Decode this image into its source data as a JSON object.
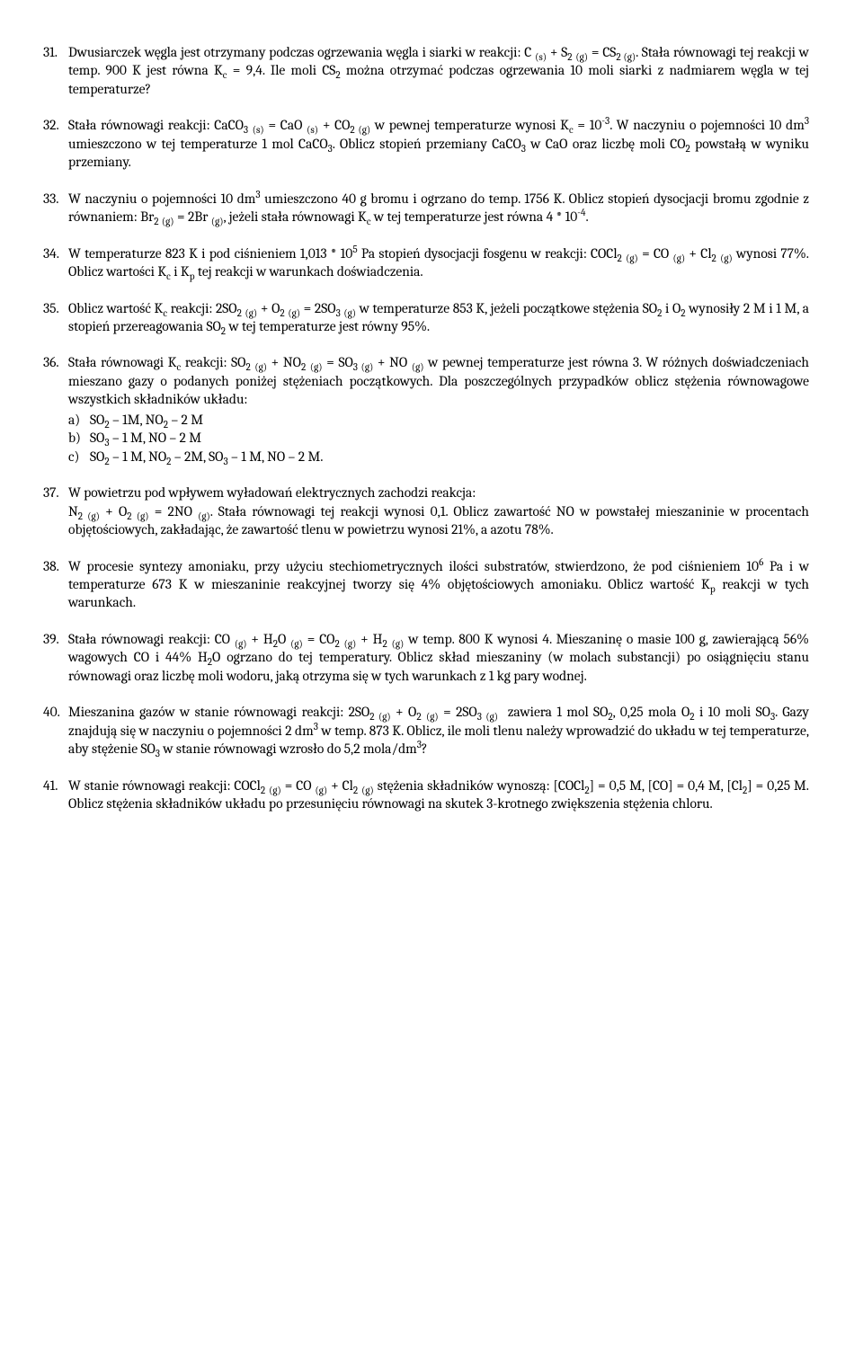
{
  "items": [
    {
      "num": "31.",
      "html": "Dwusiarczek węgla jest otrzymany podczas ogrzewania węgla i siarki w reakcji: C <sub>(s)</sub> + S<sub>2</sub> <sub>(g)</sub> = CS<sub>2</sub><sub> (g)</sub>. Stała równowagi tej reakcji w temp. 900 K jest równa K<sub>c</sub> = 9,4. Ile moli CS<sub>2</sub> można otrzymać podczas ogrzewania 10 moli siarki z nadmiarem węgla w tej temperaturze?"
    },
    {
      "num": "32.",
      "html": "Stała równowagi reakcji: CaCO<sub>3</sub> <sub>(s)</sub> = CaO <sub>(s)</sub> + CO<sub>2</sub><sub> (g)</sub> w pewnej temperaturze wynosi K<sub>c</sub> = 10<sup>-3</sup>. W naczyniu o pojemności 10 dm<sup>3</sup> umieszczono w tej temperaturze 1 mol CaCO<sub>3</sub>. Oblicz stopień przemiany CaCO<sub>3</sub> w CaO oraz liczbę moli CO<sub>2</sub> powstałą w wyniku przemiany."
    },
    {
      "num": "33.",
      "html": "W naczyniu o pojemności 10 dm<sup>3</sup> umieszczono 40 g bromu i ogrzano do temp. 1756 K. Oblicz stopień dysocjacji bromu zgodnie z równaniem: Br<sub>2</sub> <sub>(g)</sub> = 2Br <sub>(g)</sub>, jeżeli stała równowagi K<sub>c</sub> w tej temperaturze jest równa 4 * 10<sup>-4</sup>."
    },
    {
      "num": "34.",
      "html": "W temperaturze 823 K i pod ciśnieniem 1,013 * 10<sup>5</sup> Pa stopień dysocjacji fosgenu w reakcji: COCl<sub>2</sub> <sub>(g)</sub> = CO <sub>(g)</sub> + Cl<sub>2</sub> <sub>(g)</sub> wynosi 77%. Oblicz wartości K<sub>c</sub> i K<sub>p</sub> tej reakcji w warunkach doświadczenia."
    },
    {
      "num": "35.",
      "html": "Oblicz wartość K<sub>c</sub> reakcji: 2SO<sub>2</sub> <sub>(g)</sub> + O<sub>2</sub> <sub>(g)</sub> = 2SO<sub>3</sub> <sub>(g)</sub> w temperaturze 853 K, jeżeli początkowe stężenia SO<sub>2</sub> i O<sub>2</sub> wynosiły 2 M i 1 M, a stopień przereagowania SO<sub>2</sub> w tej temperaturze jest równy 95%."
    },
    {
      "num": "36.",
      "html": "Stała równowagi K<sub>c</sub> reakcji: SO<sub>2</sub> <sub>(g)</sub> + NO<sub>2</sub> <sub>(g)</sub> = SO<sub>3</sub><sub> (g)</sub> + NO <sub>(g)</sub> w pewnej temperaturze jest równa 3. W różnych doświadczeniach mieszano gazy o podanych poniżej stężeniach początkowych. Dla poszczególnych przypadków oblicz stężenia równowagowe wszystkich składników układu:",
      "sub": [
        {
          "lbl": "a)",
          "txt": "SO<sub>2</sub> – 1M, NO<sub>2</sub> – 2 M"
        },
        {
          "lbl": "b)",
          "txt": "SO<sub>3</sub> – 1 M, NO – 2 M"
        },
        {
          "lbl": "c)",
          "txt": "SO<sub>2</sub> – 1 M, NO<sub>2</sub> – 2M, SO<sub>3</sub> – 1 M, NO – 2 M."
        }
      ]
    },
    {
      "num": "37.",
      "html": "W powietrzu pod wpływem wyładowań elektrycznych zachodzi reakcja:<br>N<sub>2</sub><sub> (g)</sub> + O<sub>2</sub><sub> (g)</sub> = 2NO <sub>(g)</sub>. Stała równowagi tej reakcji wynosi 0,1. Oblicz zawartość NO w powstałej mieszaninie w procentach objętościowych, zakładając, że zawartość tlenu w powietrzu wynosi 21%, a azotu 78%."
    },
    {
      "num": "38.",
      "html": "W procesie syntezy amoniaku, przy użyciu stechiometrycznych ilości substratów, stwierdzono, że pod ciśnieniem 10<sup>6</sup> Pa i w temperaturze 673 K w mieszaninie reakcyjnej tworzy się 4% objętościowych amoniaku. Oblicz wartość K<sub>p</sub> reakcji w tych warunkach."
    },
    {
      "num": "39.",
      "html": "Stała równowagi reakcji: CO <sub>(g)</sub> + H<sub>2</sub>O <sub>(g)</sub> = CO<sub>2</sub> <sub>(g)</sub> + H<sub>2</sub> <sub>(g)</sub> w temp. 800 K wynosi 4. Mieszaninę o masie 100 g, zawierającą 56% wagowych CO i 44% H<sub>2</sub>O ogrzano do tej temperatury. Oblicz skład mieszaniny (w molach substancji) po osiągnięciu stanu równowagi oraz liczbę moli wodoru, jaką otrzyma się w tych warunkach z 1 kg pary wodnej."
    },
    {
      "num": "40.",
      "html": "Mieszanina gazów w stanie równowagi reakcji: 2SO<sub>2</sub><sub> (g)</sub> + O<sub>2</sub> <sub>(g)</sub> = 2SO<sub>3</sub><sub> (g)</sub>  zawiera 1 mol SO<sub>2</sub>, 0,25 mola O<sub>2</sub> i 10 moli SO<sub>3</sub>. Gazy znajdują się w naczyniu o pojemności 2 dm<sup>3</sup> w temp. 873 K. Oblicz, ile moli tlenu należy wprowadzić do układu w tej temperaturze, aby stężenie SO<sub>3</sub> w stanie równowagi wzrosło do 5,2 mola/dm<sup>3</sup>?"
    },
    {
      "num": "41.",
      "html": "W stanie równowagi reakcji: COCl<sub>2</sub> <sub>(g)</sub> = CO <sub>(g)</sub> + Cl<sub>2</sub> <sub>(g)</sub> stężenia składników wynoszą: [COCl<sub>2</sub>] = 0,5 M, [CO] = 0,4 M, [Cl<sub>2</sub>] = 0,25 M. Oblicz stężenia składników układu po przesunięciu równowagi na skutek 3-krotnego zwiększenia stężenia chloru."
    }
  ]
}
